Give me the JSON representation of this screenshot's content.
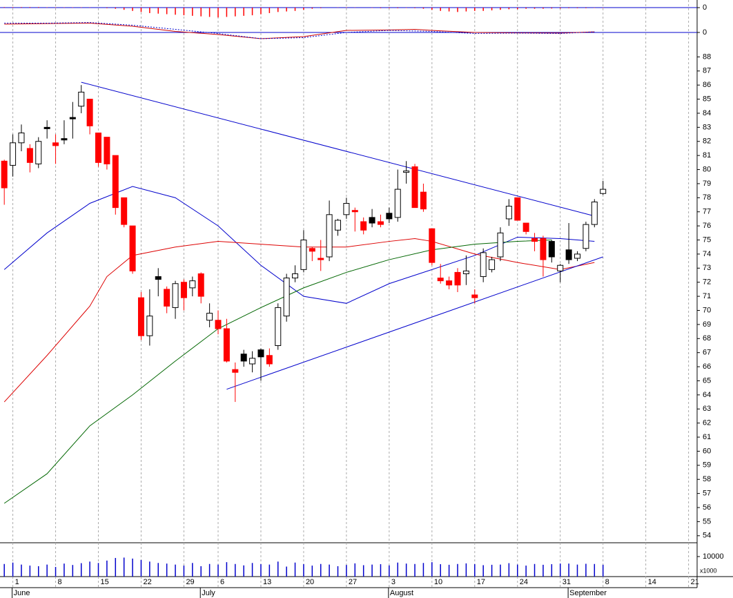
{
  "chart_data": [
    {
      "type": "bar",
      "panel": "macd-histogram",
      "color": "#ff0000",
      "xlim": [
        -0.5,
        81
      ],
      "ylim": [
        -1.2,
        0.7
      ],
      "yticks": [
        0
      ],
      "values": [
        0.05,
        0.05,
        0.05,
        0.05,
        0.05,
        0.03,
        0.03,
        0.03,
        0.03,
        0.03,
        0.02,
        0,
        -0.05,
        -0.1,
        -0.2,
        -0.3,
        -0.4,
        -0.5,
        -0.55,
        -0.6,
        -0.65,
        -0.7,
        -0.75,
        -0.8,
        -0.85,
        -0.9,
        -0.85,
        -0.8,
        -0.75,
        -0.7,
        -0.6,
        -0.5,
        -0.4,
        -0.35,
        -0.3,
        -0.2,
        -0.1,
        -0.05,
        0,
        0.02,
        0.03,
        0.02,
        0,
        -0.03,
        -0.05,
        -0.05,
        -0.05,
        -0.03,
        -0.05,
        -0.1,
        -0.2,
        -0.3,
        -0.35,
        -0.4,
        -0.35,
        -0.3,
        -0.3,
        -0.25,
        -0.2,
        -0.15,
        -0.15,
        -0.1,
        -0.1,
        -0.1,
        -0.08,
        -0.08,
        -0.05,
        -0.05,
        -0.05,
        -0.03,
        -0.03
      ]
    },
    {
      "type": "line",
      "panel": "macd-lines",
      "xlim": [
        -0.5,
        81
      ],
      "ylim": [
        -0.5,
        1
      ],
      "yticks": [
        0
      ],
      "series": [
        {
          "color": "#cc0000",
          "dash": false,
          "x": [
            0,
            5,
            10,
            15,
            20,
            25,
            30,
            35,
            40,
            45,
            48,
            50,
            55,
            60,
            65,
            69
          ],
          "values": [
            0.4,
            0.43,
            0.45,
            0.3,
            0.05,
            -0.1,
            -0.3,
            -0.2,
            0.1,
            0.12,
            0.15,
            0.1,
            0.0,
            -0.02,
            -0.03,
            0.03
          ]
        },
        {
          "color": "#0000cc",
          "dash": true,
          "x": [
            0,
            5,
            10,
            15,
            20,
            25,
            30,
            35,
            40,
            45,
            50,
            55,
            60,
            65,
            69
          ],
          "values": [
            0.45,
            0.45,
            0.48,
            0.35,
            0.15,
            -0.05,
            -0.3,
            -0.25,
            0.0,
            0.1,
            0.05,
            -0.05,
            -0.03,
            -0.05,
            0.03
          ]
        }
      ]
    },
    {
      "type": "candlestick",
      "panel": "price",
      "xlim": [
        -0.5,
        81
      ],
      "ylim": [
        53.5,
        89
      ],
      "yticks": [
        54,
        55,
        56,
        57,
        58,
        59,
        60,
        61,
        62,
        63,
        64,
        65,
        66,
        67,
        68,
        69,
        70,
        71,
        72,
        73,
        74,
        75,
        76,
        77,
        78,
        79,
        80,
        81,
        82,
        83,
        84,
        85,
        86,
        87,
        88
      ],
      "open": [
        80.6,
        80.3,
        81.9,
        81.5,
        80.4,
        83.0,
        81.9,
        82.2,
        83.7,
        84.5,
        85.0,
        82.6,
        82.3,
        81.0,
        78.0,
        76.0,
        70.9,
        68.2,
        72.4,
        71.5,
        70.2,
        72.0,
        71.6,
        72.6,
        69.3,
        69.3,
        68.7,
        65.8,
        66.9,
        66.2,
        67.2,
        66.8,
        67.5,
        69.6,
        72.3,
        72.9,
        74.4,
        73.7,
        73.8,
        75.7,
        76.8,
        77.1,
        76.3,
        76.6,
        76.3,
        76.9,
        76.6,
        79.8,
        80.2,
        78.4,
        75.8,
        72.3,
        72.1,
        72.7,
        72.6,
        71.1,
        72.4,
        72.9,
        73.8,
        76.5,
        78.0,
        76.2,
        75.1,
        75.1,
        74.9,
        72.8,
        74.3,
        73.7,
        74.4,
        76.1,
        78.3
      ],
      "high": [
        80.7,
        82.5,
        83.2,
        81.8,
        82.3,
        83.5,
        82.5,
        83.5,
        84.8,
        86.0,
        85.0,
        82.6,
        82.3,
        81.0,
        78.0,
        76.0,
        71.3,
        71.5,
        73.0,
        71.7,
        72.1,
        72.2,
        72.4,
        72.7,
        70.5,
        70.0,
        69.4,
        66.3,
        67.2,
        67.1,
        67.3,
        67.3,
        70.5,
        72.6,
        73.2,
        75.7,
        74.5,
        75.0,
        77.8,
        76.5,
        78.0,
        77.3,
        76.6,
        77.2,
        76.8,
        77.3,
        80.0,
        80.6,
        80.4,
        79.0,
        75.8,
        73.3,
        72.4,
        73.0,
        73.9,
        71.5,
        74.4,
        73.8,
        75.9,
        77.9,
        78.0,
        76.2,
        75.5,
        75.3,
        75.0,
        73.3,
        76.2,
        74.2,
        76.3,
        77.9,
        79.2
      ],
      "low": [
        77.5,
        79.5,
        81.3,
        79.8,
        80.1,
        82.2,
        80.4,
        81.8,
        82.2,
        84.0,
        82.5,
        80.2,
        80.0,
        76.8,
        75.9,
        72.6,
        67.9,
        67.5,
        71.0,
        69.8,
        69.4,
        70.0,
        71.0,
        70.5,
        68.8,
        68.3,
        66.3,
        63.5,
        66.0,
        65.6,
        65.0,
        66.0,
        67.2,
        69.2,
        72.0,
        72.7,
        73.5,
        72.8,
        73.5,
        75.3,
        76.5,
        75.6,
        75.4,
        75.9,
        75.9,
        76.2,
        76.3,
        79.0,
        77.3,
        77.0,
        73.2,
        71.9,
        71.5,
        71.3,
        71.8,
        70.5,
        72.0,
        72.7,
        73.5,
        76.0,
        76.4,
        75.4,
        74.2,
        72.4,
        73.4,
        72.0,
        73.3,
        73.5,
        74.2,
        75.9,
        78.2
      ],
      "close": [
        78.7,
        81.9,
        82.6,
        80.5,
        82.0,
        82.9,
        81.7,
        82.1,
        83.6,
        85.5,
        83.1,
        80.5,
        80.4,
        77.3,
        76.1,
        72.8,
        68.2,
        69.6,
        72.2,
        70.3,
        71.9,
        70.9,
        72.1,
        71.0,
        69.8,
        68.7,
        66.4,
        65.6,
        66.4,
        66.6,
        66.7,
        66.2,
        70.2,
        72.3,
        72.6,
        75.0,
        74.2,
        73.6,
        76.8,
        76.4,
        77.6,
        77.0,
        75.7,
        76.2,
        76.1,
        76.5,
        78.6,
        79.9,
        77.3,
        77.2,
        73.4,
        72.1,
        71.8,
        71.8,
        72.8,
        70.9,
        74.1,
        73.6,
        75.5,
        77.4,
        76.4,
        75.6,
        74.9,
        73.6,
        73.8,
        73.2,
        73.6,
        74.0,
        76.1,
        77.7,
        78.6
      ],
      "colors": [
        "#ff0000",
        "#ffffff",
        "#ffffff",
        "#ff0000",
        "#ffffff",
        "#000000",
        "#ff0000",
        "#000000",
        "#000000",
        "#ffffff",
        "#ff0000",
        "#ff0000",
        "#ff0000",
        "#ff0000",
        "#ff0000",
        "#ff0000",
        "#ff0000",
        "#ffffff",
        "#000000",
        "#ff0000",
        "#ffffff",
        "#ff0000",
        "#ffffff",
        "#ff0000",
        "#ffffff",
        "#ff0000",
        "#ff0000",
        "#ff0000",
        "#000000",
        "#ffffff",
        "#000000",
        "#ff0000",
        "#ffffff",
        "#ffffff",
        "#ffffff",
        "#ffffff",
        "#ff0000",
        "#ff0000",
        "#ffffff",
        "#ffffff",
        "#ffffff",
        "#ff0000",
        "#ff0000",
        "#000000",
        "#ff0000",
        "#000000",
        "#ffffff",
        "#ffffff",
        "#ff0000",
        "#ff0000",
        "#ff0000",
        "#ff0000",
        "#ff0000",
        "#ff0000",
        "#ffffff",
        "#ff0000",
        "#ffffff",
        "#ffffff",
        "#ffffff",
        "#ffffff",
        "#ff0000",
        "#ff0000",
        "#ff0000",
        "#ff0000",
        "#000000",
        "#ffffff",
        "#000000",
        "#ffffff",
        "#ffffff",
        "#ffffff",
        "#ffffff"
      ],
      "series": [
        {
          "color": "#0000cc",
          "x": [
            0,
            5,
            10,
            15,
            20,
            25,
            30,
            35,
            40,
            45,
            50,
            55,
            60,
            65,
            69
          ],
          "values": [
            72.9,
            75.5,
            77.6,
            78.8,
            78.0,
            76.0,
            73.2,
            71.0,
            70.5,
            71.9,
            72.9,
            73.9,
            75.2,
            75.1,
            74.9
          ]
        },
        {
          "color": "#dd0000",
          "x": [
            0,
            5,
            10,
            12,
            15,
            20,
            25,
            30,
            35,
            40,
            45,
            48,
            50,
            55,
            60,
            65,
            69
          ],
          "values": [
            63.5,
            66.8,
            70.3,
            72.4,
            73.9,
            74.5,
            74.9,
            74.7,
            74.5,
            74.5,
            74.9,
            75.1,
            74.9,
            74.0,
            73.4,
            72.9,
            73.4
          ]
        },
        {
          "color": "#006600",
          "x": [
            0,
            5,
            10,
            15,
            20,
            25,
            30,
            35,
            40,
            45,
            50,
            55,
            60,
            64
          ],
          "values": [
            56.3,
            58.4,
            61.8,
            64.0,
            66.4,
            68.7,
            70.2,
            71.6,
            72.7,
            73.6,
            74.3,
            74.7,
            74.9,
            75.0
          ]
        },
        {
          "color": "#0000cc",
          "x": [
            9,
            69
          ],
          "values": [
            86.2,
            76.7
          ]
        },
        {
          "color": "#0000cc",
          "x": [
            26,
            70
          ],
          "values": [
            64.4,
            73.8
          ]
        }
      ]
    },
    {
      "type": "bar",
      "panel": "volume",
      "color": "#0000cc",
      "xlim": [
        -0.5,
        81
      ],
      "ylim": [
        0,
        16900
      ],
      "yticks": [
        10000
      ],
      "unit": "x1000",
      "values": [
        6300,
        7000,
        6000,
        5500,
        5200,
        6000,
        4800,
        6500,
        5800,
        6700,
        7500,
        6800,
        8000,
        9300,
        9500,
        9000,
        8300,
        7500,
        6800,
        6500,
        6000,
        5500,
        6800,
        5200,
        6300,
        6000,
        7200,
        6300,
        5600,
        6800,
        6200,
        6000,
        7500,
        5000,
        7000,
        6200,
        5500,
        6300,
        6000,
        5200,
        5800,
        6600,
        5700,
        6000,
        6200,
        5600,
        7000,
        6500,
        6300,
        6800,
        7200,
        6200,
        5900,
        6300,
        6600,
        6200,
        5700,
        5900,
        6000,
        6700,
        6000,
        5500,
        6300,
        5900,
        6200,
        6500,
        6500,
        6000,
        6400,
        6300,
        5900
      ],
      "xticks": [
        {
          "value": 1,
          "label": "1"
        },
        {
          "value": 6,
          "label": "8"
        },
        {
          "value": 11,
          "label": "15"
        },
        {
          "value": 16,
          "label": "22"
        },
        {
          "value": 21,
          "label": "29"
        },
        {
          "value": 25,
          "label": "6"
        },
        {
          "value": 30,
          "label": "13"
        },
        {
          "value": 35,
          "label": "20"
        },
        {
          "value": 40,
          "label": "27"
        },
        {
          "value": 45,
          "label": "3"
        },
        {
          "value": 50,
          "label": "10"
        },
        {
          "value": 55,
          "label": "17"
        },
        {
          "value": 60,
          "label": "24"
        },
        {
          "value": 65,
          "label": "31"
        },
        {
          "value": 70,
          "label": "8"
        },
        {
          "value": 75,
          "label": "14"
        },
        {
          "value": 80,
          "label": "21"
        }
      ],
      "months": [
        {
          "value": 1,
          "label": "June"
        },
        {
          "value": 23,
          "label": "July"
        },
        {
          "value": 45,
          "label": "August"
        },
        {
          "value": 66,
          "label": "September"
        }
      ]
    }
  ]
}
